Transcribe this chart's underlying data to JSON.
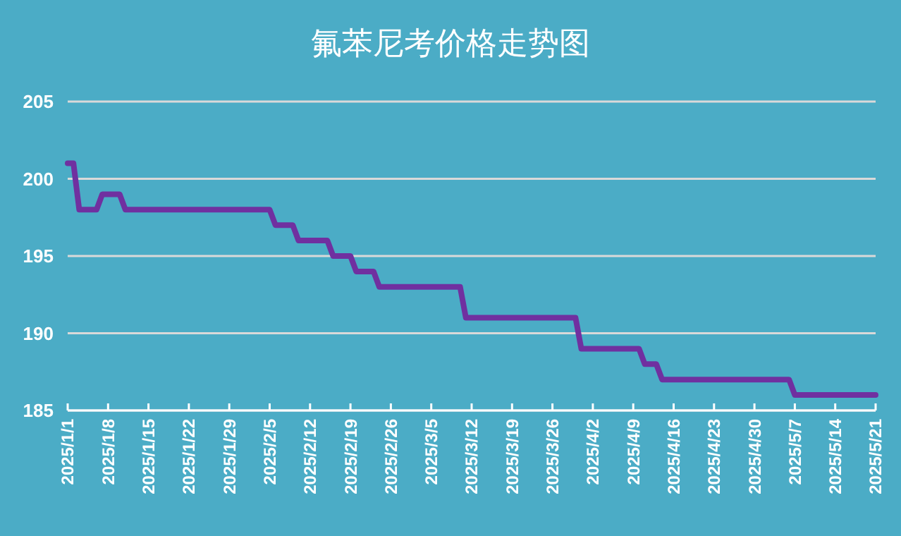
{
  "chart_data": {
    "type": "line",
    "title": "氟苯尼考价格走势图",
    "x": [
      "2025-01-01",
      "2025-01-02",
      "2025-01-03",
      "2025-01-06",
      "2025-01-07",
      "2025-01-10",
      "2025-01-11",
      "2025-02-05",
      "2025-02-06",
      "2025-02-09",
      "2025-02-10",
      "2025-02-15",
      "2025-02-16",
      "2025-02-19",
      "2025-02-20",
      "2025-02-23",
      "2025-02-24",
      "2025-03-10",
      "2025-03-11",
      "2025-03-30",
      "2025-03-31",
      "2025-04-10",
      "2025-04-11",
      "2025-04-13",
      "2025-04-14",
      "2025-05-06",
      "2025-05-07",
      "2025-05-21"
    ],
    "series": [
      {
        "color": "#7030a0",
        "values": [
          201,
          201,
          198,
          198,
          199,
          199,
          198,
          198,
          197,
          197,
          196,
          196,
          195,
          195,
          194,
          194,
          193,
          193,
          191,
          191,
          189,
          189,
          188,
          188,
          187,
          187,
          186,
          186
        ]
      }
    ],
    "xlim": [
      "2025-01-01",
      "2025-05-21"
    ],
    "xticks": [
      {
        "value": "2025-01-01",
        "label": "2025/1/1"
      },
      {
        "value": "2025-01-08",
        "label": "2025/1/8"
      },
      {
        "value": "2025-01-15",
        "label": "2025/1/15"
      },
      {
        "value": "2025-01-22",
        "label": "2025/1/22"
      },
      {
        "value": "2025-01-29",
        "label": "2025/1/29"
      },
      {
        "value": "2025-02-05",
        "label": "2025/2/5"
      },
      {
        "value": "2025-02-12",
        "label": "2025/2/12"
      },
      {
        "value": "2025-02-19",
        "label": "2025/2/19"
      },
      {
        "value": "2025-02-26",
        "label": "2025/2/26"
      },
      {
        "value": "2025-03-05",
        "label": "2025/3/5"
      },
      {
        "value": "2025-03-12",
        "label": "2025/3/12"
      },
      {
        "value": "2025-03-19",
        "label": "2025/3/19"
      },
      {
        "value": "2025-03-26",
        "label": "2025/3/26"
      },
      {
        "value": "2025-04-02",
        "label": "2025/4/2"
      },
      {
        "value": "2025-04-09",
        "label": "2025/4/9"
      },
      {
        "value": "2025-04-16",
        "label": "2025/4/16"
      },
      {
        "value": "2025-04-23",
        "label": "2025/4/23"
      },
      {
        "value": "2025-04-30",
        "label": "2025/4/30"
      },
      {
        "value": "2025-05-07",
        "label": "2025/5/7"
      },
      {
        "value": "2025-05-14",
        "label": "2025/5/14"
      },
      {
        "value": "2025-05-21",
        "label": "2025/5/21"
      }
    ],
    "ylim": [
      185,
      205
    ],
    "yticks": [
      185,
      190,
      195,
      200,
      205
    ],
    "grid": "y",
    "marker": "none",
    "line_style": "solid"
  }
}
